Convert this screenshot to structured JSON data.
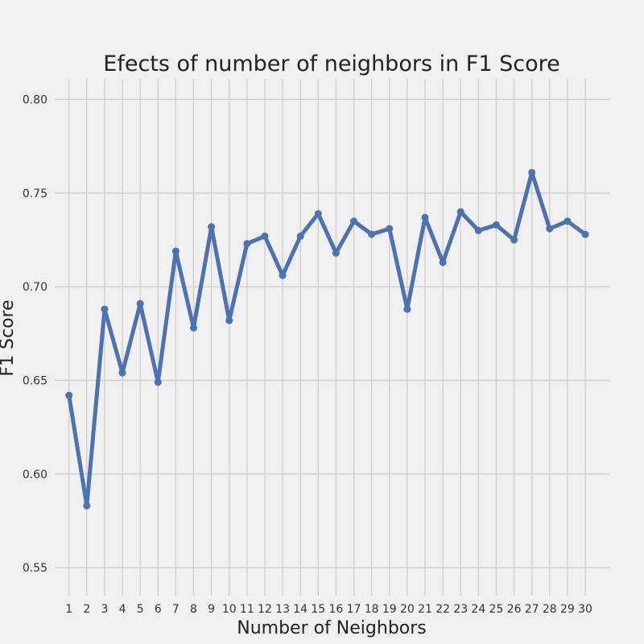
{
  "chart_data": {
    "type": "line",
    "title": "Efects of number of neighbors in F1 Score",
    "xlabel": "Number of Neighbors",
    "ylabel": "F1 Score",
    "x": [
      1,
      2,
      3,
      4,
      5,
      6,
      7,
      8,
      9,
      10,
      11,
      12,
      13,
      14,
      15,
      16,
      17,
      18,
      19,
      20,
      21,
      22,
      23,
      24,
      25,
      26,
      27,
      28,
      29,
      30
    ],
    "yticks": [
      0.55,
      0.6,
      0.65,
      0.7,
      0.75,
      0.8
    ],
    "ytick_labels": [
      "0.55",
      "0.60",
      "0.65",
      "0.70",
      "0.75",
      "0.80"
    ],
    "ylim": [
      0.535,
      0.811
    ],
    "xlim": [
      0.2,
      31.4
    ],
    "grid": true,
    "line_color": "#4c72b0",
    "background_color": "#f0f0f0",
    "grid_color": "#cbcbcb",
    "series": [
      {
        "values": [
          0.642,
          0.583,
          0.688,
          0.654,
          0.691,
          0.649,
          0.719,
          0.678,
          0.732,
          0.682,
          0.723,
          0.727,
          0.706,
          0.727,
          0.739,
          0.718,
          0.735,
          0.728,
          0.731,
          0.688,
          0.737,
          0.713,
          0.74,
          0.73,
          0.733,
          0.725,
          0.761,
          0.731,
          0.735,
          0.728
        ]
      }
    ]
  }
}
